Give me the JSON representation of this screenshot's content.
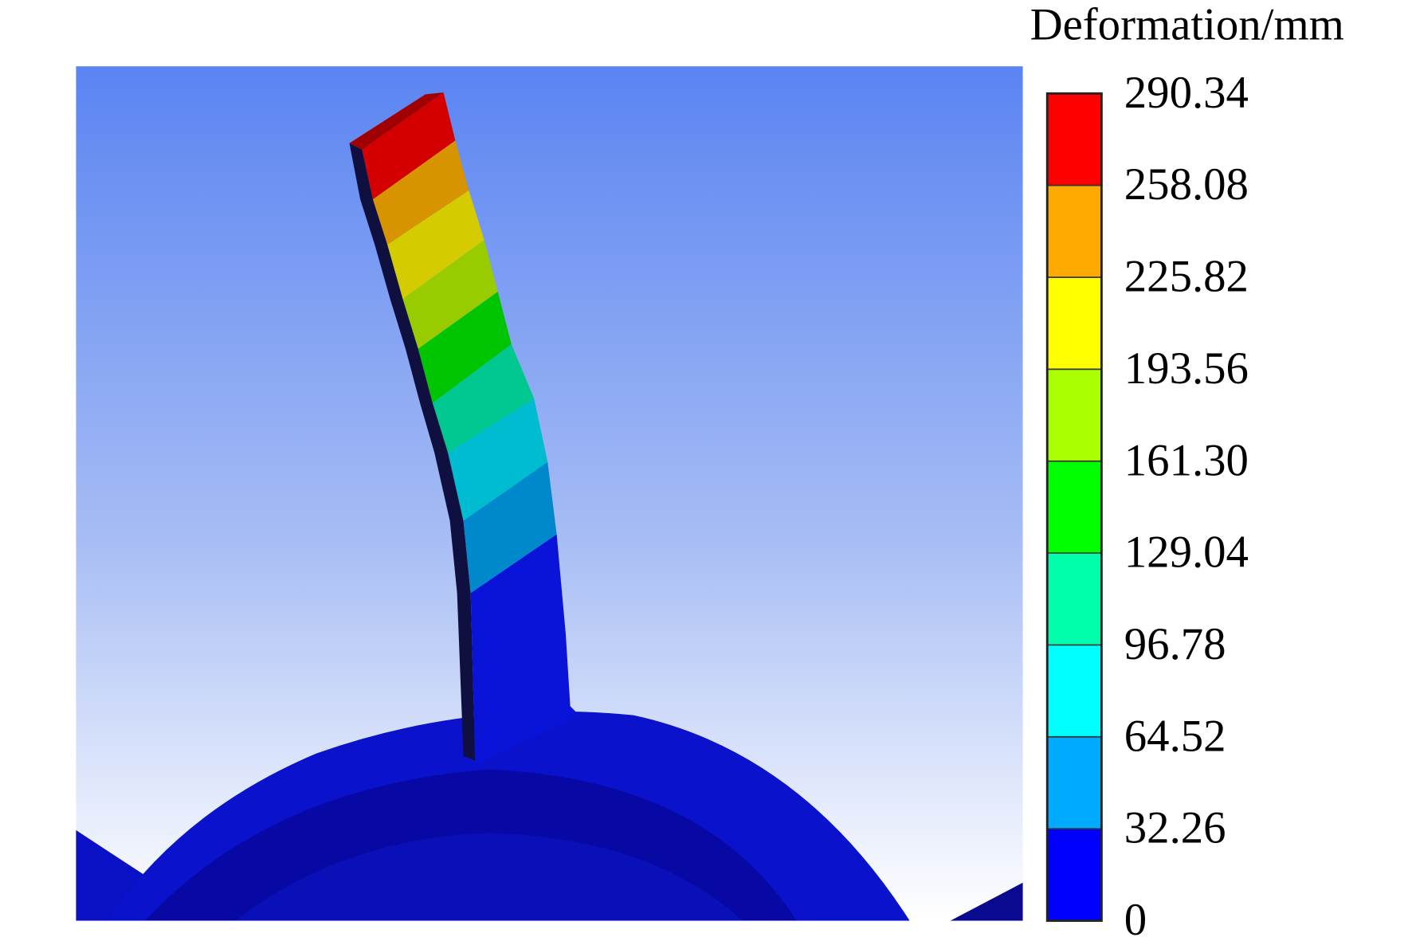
{
  "chart_data": {
    "type": "contour",
    "colorbar_title": "Deformation/mm",
    "ticks": [
      0,
      32.26,
      64.52,
      96.78,
      129.04,
      {
        "value": 161.3,
        "label": "161.30"
      },
      193.56,
      225.82,
      258.08,
      290.34
    ],
    "lim": [
      0,
      290.34
    ],
    "colors": [
      "#0000ff",
      "#00aaff",
      "#00ffff",
      "#00ffaa",
      "#00ff00",
      "#aaff00",
      "#ffff00",
      "#ffaa00",
      "#ff0000"
    ]
  }
}
